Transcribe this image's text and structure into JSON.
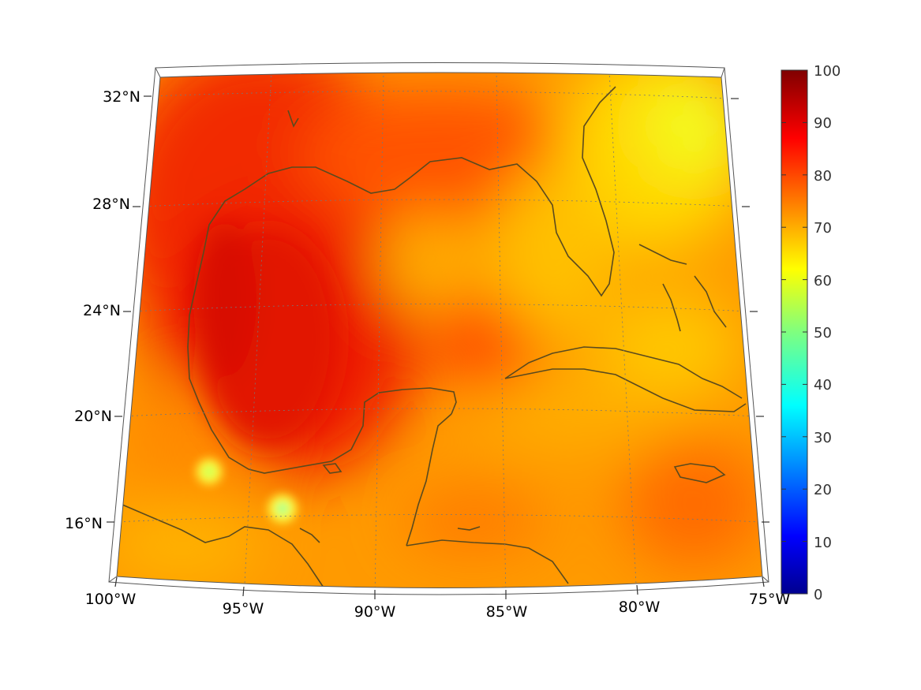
{
  "map": {
    "projection": "lambert-conformal",
    "extent": {
      "lon": [
        -100,
        -75
      ],
      "lat": [
        14,
        33
      ]
    },
    "colormap": "jet",
    "coastline_color": "#5a4a1e",
    "lat_labels": [
      {
        "value": 32,
        "text": "32°N"
      },
      {
        "value": 28,
        "text": "28°N"
      },
      {
        "value": 24,
        "text": "24°N"
      },
      {
        "value": 20,
        "text": "20°N"
      },
      {
        "value": 16,
        "text": "16°N"
      }
    ],
    "lon_labels": [
      {
        "value": -100,
        "text": "100°W"
      },
      {
        "value": -95,
        "text": "95°W"
      },
      {
        "value": -90,
        "text": "90°W"
      },
      {
        "value": -85,
        "text": "85°W"
      },
      {
        "value": -80,
        "text": "80°W"
      },
      {
        "value": -75,
        "text": "75°W"
      }
    ]
  },
  "colorbar": {
    "range": [
      0,
      100
    ],
    "ticks": [
      "0",
      "10",
      "20",
      "30",
      "40",
      "50",
      "60",
      "70",
      "80",
      "90",
      "100"
    ]
  }
}
